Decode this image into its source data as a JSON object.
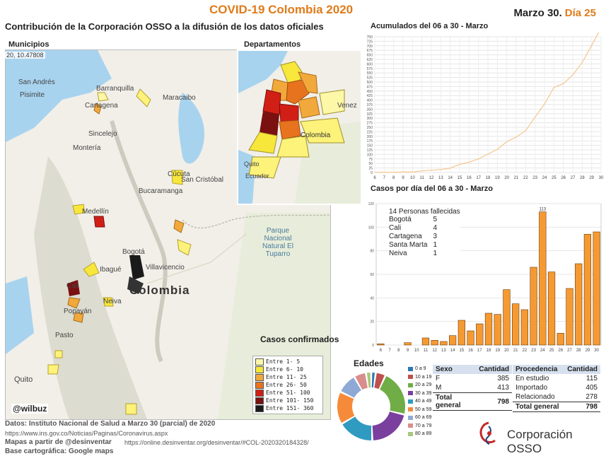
{
  "header": {
    "title": "COVID-19 Colombia 2020",
    "date": "Marzo 30.",
    "day_label": "Día 25",
    "subtitle": "Contribución de la Corporación OSSO a la difusión de los datos oficiales"
  },
  "maps": {
    "municipios_label": "Municipios",
    "departamentos_label": "Departamentos",
    "coords": "20, 10.47808",
    "country_label": "Colombia",
    "dept_country_label": "Colombia",
    "dept_venezuela": "Venez",
    "dept_ecuador": "Ecuador",
    "dept_quito": "Quito",
    "cities": {
      "san_andres": "San Andrés",
      "pisimite": "Pisimite",
      "barranquilla": "Barranquilla",
      "cartagena": "Cartagena",
      "sincelejo": "Sincelejo",
      "monteria": "Montería",
      "maracaibo": "Maracaibo",
      "cucuta": "Cúcuta",
      "san_cristobal": "San Cristóbal",
      "bucaramanga": "Bucaramanga",
      "medellin": "Medellín",
      "ibague": "Ibagué",
      "bogota": "Bogotá",
      "villavicencio": "Villavicencio",
      "cali": "Cali",
      "neiva": "Neiva",
      "popayan": "Popayán",
      "pasto": "Pasto",
      "quito": "Quito",
      "ecuador": "Ecuador"
    },
    "park_label": "Parque Nacional Natural El Tuparro",
    "handle": "@wilbuz",
    "legend_title": "Casos confirmados",
    "legend": [
      {
        "label": "Entre 1- 5",
        "color": "#fdf7a8"
      },
      {
        "label": "Entre 6- 10",
        "color": "#f7e73a"
      },
      {
        "label": "Entre 11- 25",
        "color": "#f2a93b"
      },
      {
        "label": "Entre 26- 50",
        "color": "#e8731f"
      },
      {
        "label": "Entre 51- 100",
        "color": "#d21f16"
      },
      {
        "label": "Entre 101- 150",
        "color": "#7a1010"
      },
      {
        "label": "Entre 151- 360",
        "color": "#1a1a1a"
      }
    ]
  },
  "charts": {
    "accumulated_title": "Acumulados del 06 a 30 - Marzo",
    "daily_title": "Casos por día del 06 a 30 - Marzo",
    "bar_peak_label": "113",
    "line_color": "#f5c78e",
    "bar_color": "#f59a32"
  },
  "chart_data": [
    {
      "type": "line",
      "title": "Acumulados del 06 a 30 - Marzo",
      "x": [
        6,
        7,
        8,
        9,
        10,
        11,
        12,
        13,
        14,
        15,
        16,
        17,
        18,
        19,
        20,
        21,
        22,
        23,
        24,
        25,
        26,
        27,
        28,
        29,
        30
      ],
      "y": [
        1,
        1,
        1,
        3,
        3,
        9,
        13,
        16,
        24,
        45,
        57,
        75,
        102,
        128,
        170,
        196,
        231,
        306,
        378,
        470,
        491,
        539,
        608,
        702,
        798
      ],
      "xticks": [
        "6",
        "7",
        "8",
        "9",
        "10",
        "11",
        "12",
        "13",
        "14",
        "15",
        "16",
        "17",
        "18",
        "19",
        "20",
        "21",
        "22",
        "23",
        "24",
        "25",
        "26",
        "27",
        "28",
        "29",
        "30"
      ],
      "yticks": [
        0,
        25,
        50,
        75,
        100,
        125,
        150,
        175,
        200,
        225,
        250,
        275,
        300,
        325,
        350,
        375,
        400,
        425,
        450,
        475,
        500,
        525,
        550,
        575,
        600,
        625,
        650,
        675,
        700,
        725,
        750
      ],
      "ylim": [
        0,
        750
      ],
      "grid": true
    },
    {
      "type": "bar",
      "title": "Casos por día del 06 a 30 - Marzo",
      "categories": [
        "6",
        "7",
        "8",
        "9",
        "10",
        "11",
        "12",
        "13",
        "14",
        "15",
        "16",
        "17",
        "18",
        "19",
        "20",
        "21",
        "22",
        "23",
        "24",
        "25",
        "26",
        "27",
        "28",
        "29",
        "30"
      ],
      "values": [
        1,
        0,
        0,
        2,
        0,
        6,
        4,
        3,
        8,
        21,
        12,
        18,
        27,
        26,
        47,
        35,
        30,
        66,
        113,
        62,
        10,
        48,
        69,
        94,
        96
      ],
      "yticks": [
        0,
        20,
        40,
        60,
        80,
        100,
        120
      ],
      "ylim": [
        0,
        120
      ],
      "grid": true,
      "annotation": {
        "title": "14 Personas fallecidas",
        "rows": [
          {
            "city": "Bogotá",
            "n": "5"
          },
          {
            "city": "Cali",
            "n": "4"
          },
          {
            "city": "Cartagena",
            "n": "3"
          },
          {
            "city": "Santa Marta",
            "n": "1"
          },
          {
            "city": "Neiva",
            "n": "1"
          }
        ]
      }
    },
    {
      "type": "pie",
      "title": "Edades",
      "categories": [
        "0 a 9",
        "10 a 19",
        "20 a 29",
        "30 a 39",
        "40 a 49",
        "50 a 59",
        "60 a 69",
        "70 a 79",
        "80 a 89"
      ],
      "values": [
        17,
        38,
        175,
        165,
        136,
        124,
        77,
        46,
        20
      ],
      "colors": [
        "#2e75b6",
        "#c0504d",
        "#70ad47",
        "#7b3f9e",
        "#2f9bc1",
        "#f58b3a",
        "#8fa9d6",
        "#d98d8c",
        "#a9c77b"
      ],
      "donut": true
    }
  ],
  "sexo_table": {
    "headers": [
      "Sexo",
      "Cantidad"
    ],
    "rows": [
      {
        "k": "F",
        "v": "385"
      },
      {
        "k": "M",
        "v": "413"
      }
    ],
    "total_label": "Total general",
    "total": "798"
  },
  "procedencia_table": {
    "headers": [
      "Procedencia",
      "Cantidad"
    ],
    "rows": [
      {
        "k": "En estudio",
        "v": "115"
      },
      {
        "k": "Importado",
        "v": "405"
      },
      {
        "k": "Relacionado",
        "v": "278"
      }
    ],
    "total_label": "Total general",
    "total": "798"
  },
  "footer": {
    "datos": "Datos: Instituto Nacional de Salud a Marzo 30 (parcial) de 2020",
    "url1": "https://www.ins.gov.co/Noticias/Paginas/Coronavirus.aspx",
    "mapas": "Mapas a partir de @desinventar",
    "url2": "https://online.desinventar.org/desinventar/#COL-2020320184328/",
    "base": "Base cartográfica: Google maps",
    "org_name": "Corporación OSSO"
  }
}
